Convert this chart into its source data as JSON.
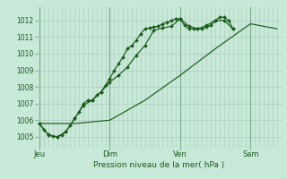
{
  "bg_color": "#c8e8d8",
  "grid_minor_color": "#a8c8b8",
  "grid_major_color": "#7aaa8a",
  "line_color": "#1a5c1a",
  "ylabel_text": "Pression niveau de la mer( hPa )",
  "ylim": [
    1004.4,
    1012.8
  ],
  "yticks": [
    1005,
    1006,
    1007,
    1008,
    1009,
    1010,
    1011,
    1012
  ],
  "xtick_labels": [
    "Jeu",
    "Dim",
    "Ven",
    "Sam"
  ],
  "xtick_positions": [
    0,
    32,
    64,
    96
  ],
  "vline_major": [
    0,
    32,
    64,
    96
  ],
  "xlim": [
    -1,
    110
  ],
  "line1_x": [
    0,
    2,
    4,
    6,
    8,
    10,
    12,
    14,
    16,
    18,
    20,
    22,
    24,
    26,
    28,
    30,
    32,
    34,
    36,
    38,
    40,
    42,
    44,
    46,
    48,
    50,
    52,
    54,
    56,
    58,
    60,
    62,
    64,
    66,
    68,
    70,
    72,
    74,
    76,
    78,
    80,
    82,
    84,
    86,
    88
  ],
  "line1_y": [
    1005.8,
    1005.4,
    1005.15,
    1005.05,
    1005.0,
    1005.1,
    1005.3,
    1005.7,
    1006.1,
    1006.5,
    1007.0,
    1007.2,
    1007.2,
    1007.5,
    1007.7,
    1008.1,
    1008.5,
    1009.0,
    1009.4,
    1009.8,
    1010.3,
    1010.5,
    1010.8,
    1011.2,
    1011.5,
    1011.55,
    1011.6,
    1011.65,
    1011.8,
    1011.9,
    1012.0,
    1012.1,
    1012.1,
    1011.7,
    1011.5,
    1011.5,
    1011.5,
    1011.5,
    1011.6,
    1011.7,
    1012.0,
    1012.2,
    1012.2,
    1012.0,
    1011.5
  ],
  "line2_x": [
    0,
    4,
    8,
    12,
    16,
    20,
    24,
    28,
    32,
    36,
    40,
    44,
    48,
    52,
    56,
    60,
    64,
    68,
    72,
    76,
    80,
    84,
    88
  ],
  "line2_y": [
    1005.8,
    1005.1,
    1005.0,
    1005.3,
    1006.1,
    1006.9,
    1007.2,
    1007.7,
    1008.3,
    1008.7,
    1009.2,
    1009.9,
    1010.5,
    1011.4,
    1011.55,
    1011.65,
    1012.1,
    1011.65,
    1011.5,
    1011.7,
    1012.0,
    1012.0,
    1011.5
  ],
  "line3_x": [
    0,
    16,
    32,
    48,
    64,
    80,
    96,
    108
  ],
  "line3_y": [
    1005.8,
    1005.8,
    1006.0,
    1007.2,
    1008.7,
    1010.3,
    1011.8,
    1011.5
  ]
}
